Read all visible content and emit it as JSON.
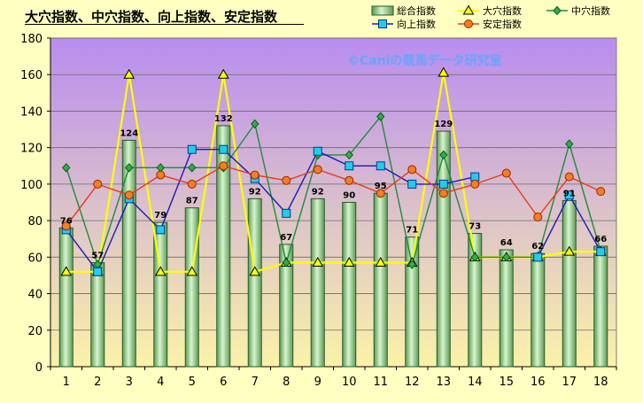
{
  "chart_data": {
    "type": "bar",
    "title": "大穴指数、中穴指数、向上指数、安定指数",
    "watermark": "©Caniの競馬データ研究室",
    "categories": [
      "1",
      "2",
      "3",
      "4",
      "5",
      "6",
      "7",
      "8",
      "9",
      "10",
      "11",
      "12",
      "13",
      "14",
      "15",
      "16",
      "17",
      "18"
    ],
    "ylim": [
      0,
      180
    ],
    "yticks": [
      0,
      20,
      40,
      60,
      80,
      100,
      120,
      140,
      160,
      180
    ],
    "grid": true,
    "legend_position": "top-right",
    "colors": {
      "plot_bg_top": "#b98cf0",
      "plot_bg_bottom": "#fbf2a8",
      "outer_bg": "#feffc0",
      "bar_fill": "#a8e0a0",
      "bar_stroke": "#2a5a2a",
      "daiana": "#ffff00",
      "chuana": "#1f8a3a",
      "kojo": "#1a1ab8",
      "kojo_marker": "#22ccee",
      "antei": "#e83a1a",
      "antei_marker": "#f08020"
    },
    "series": [
      {
        "name": "総合指数",
        "kind": "bar",
        "values": [
          76,
          57,
          124,
          79,
          87,
          132,
          92,
          67,
          92,
          90,
          95,
          71,
          129,
          73,
          64,
          62,
          91,
          66
        ]
      },
      {
        "name": "大穴指数",
        "kind": "line",
        "marker": "triangle",
        "values": [
          52,
          52,
          160,
          52,
          52,
          160,
          52,
          57,
          57,
          57,
          57,
          57,
          161,
          60,
          60,
          60,
          63,
          63
        ]
      },
      {
        "name": "中穴指数",
        "kind": "line",
        "marker": "diamond",
        "values": [
          109,
          56,
          109,
          109,
          109,
          109,
          133,
          57,
          116,
          116,
          137,
          56,
          116,
          60,
          60,
          60,
          122,
          63
        ]
      },
      {
        "name": "向上指数",
        "kind": "line",
        "marker": "square",
        "values": [
          75,
          52,
          92,
          75,
          119,
          119,
          103,
          84,
          118,
          110,
          110,
          100,
          100,
          104,
          null,
          60,
          94,
          63
        ]
      },
      {
        "name": "安定指数",
        "kind": "line",
        "marker": "circle",
        "values": [
          77,
          100,
          94,
          105,
          100,
          110,
          105,
          102,
          108,
          102,
          95,
          108,
          95,
          100,
          106,
          82,
          104,
          96
        ]
      }
    ],
    "data_labels": [
      76,
      57,
      124,
      79,
      87,
      132,
      92,
      67,
      92,
      90,
      95,
      71,
      129,
      73,
      64,
      62,
      91,
      66
    ]
  }
}
